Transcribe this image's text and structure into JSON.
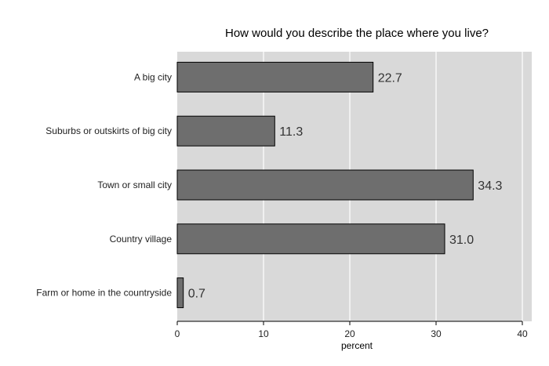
{
  "chart_data": {
    "type": "bar",
    "orientation": "horizontal",
    "title": "How would you describe the place where you live?",
    "xlabel": "percent",
    "ylabel": "",
    "categories": [
      "A big city",
      "Suburbs or outskirts of big city",
      "Town or small city",
      "Country village",
      "Farm or home in the countryside"
    ],
    "values": [
      22.7,
      11.3,
      34.3,
      31.0,
      0.7
    ],
    "data_labels": [
      "22.7",
      "11.3",
      "34.3",
      "31.0",
      "0.7"
    ],
    "xlim": [
      0,
      40
    ],
    "xticks": [
      0,
      10,
      20,
      30,
      40
    ],
    "grid": true,
    "legend": "none",
    "colors": {
      "bar_fill": "#6e6e6e",
      "bar_stroke": "#000000",
      "plot_background": "#d9d9d9",
      "grid": "#ffffff"
    }
  }
}
